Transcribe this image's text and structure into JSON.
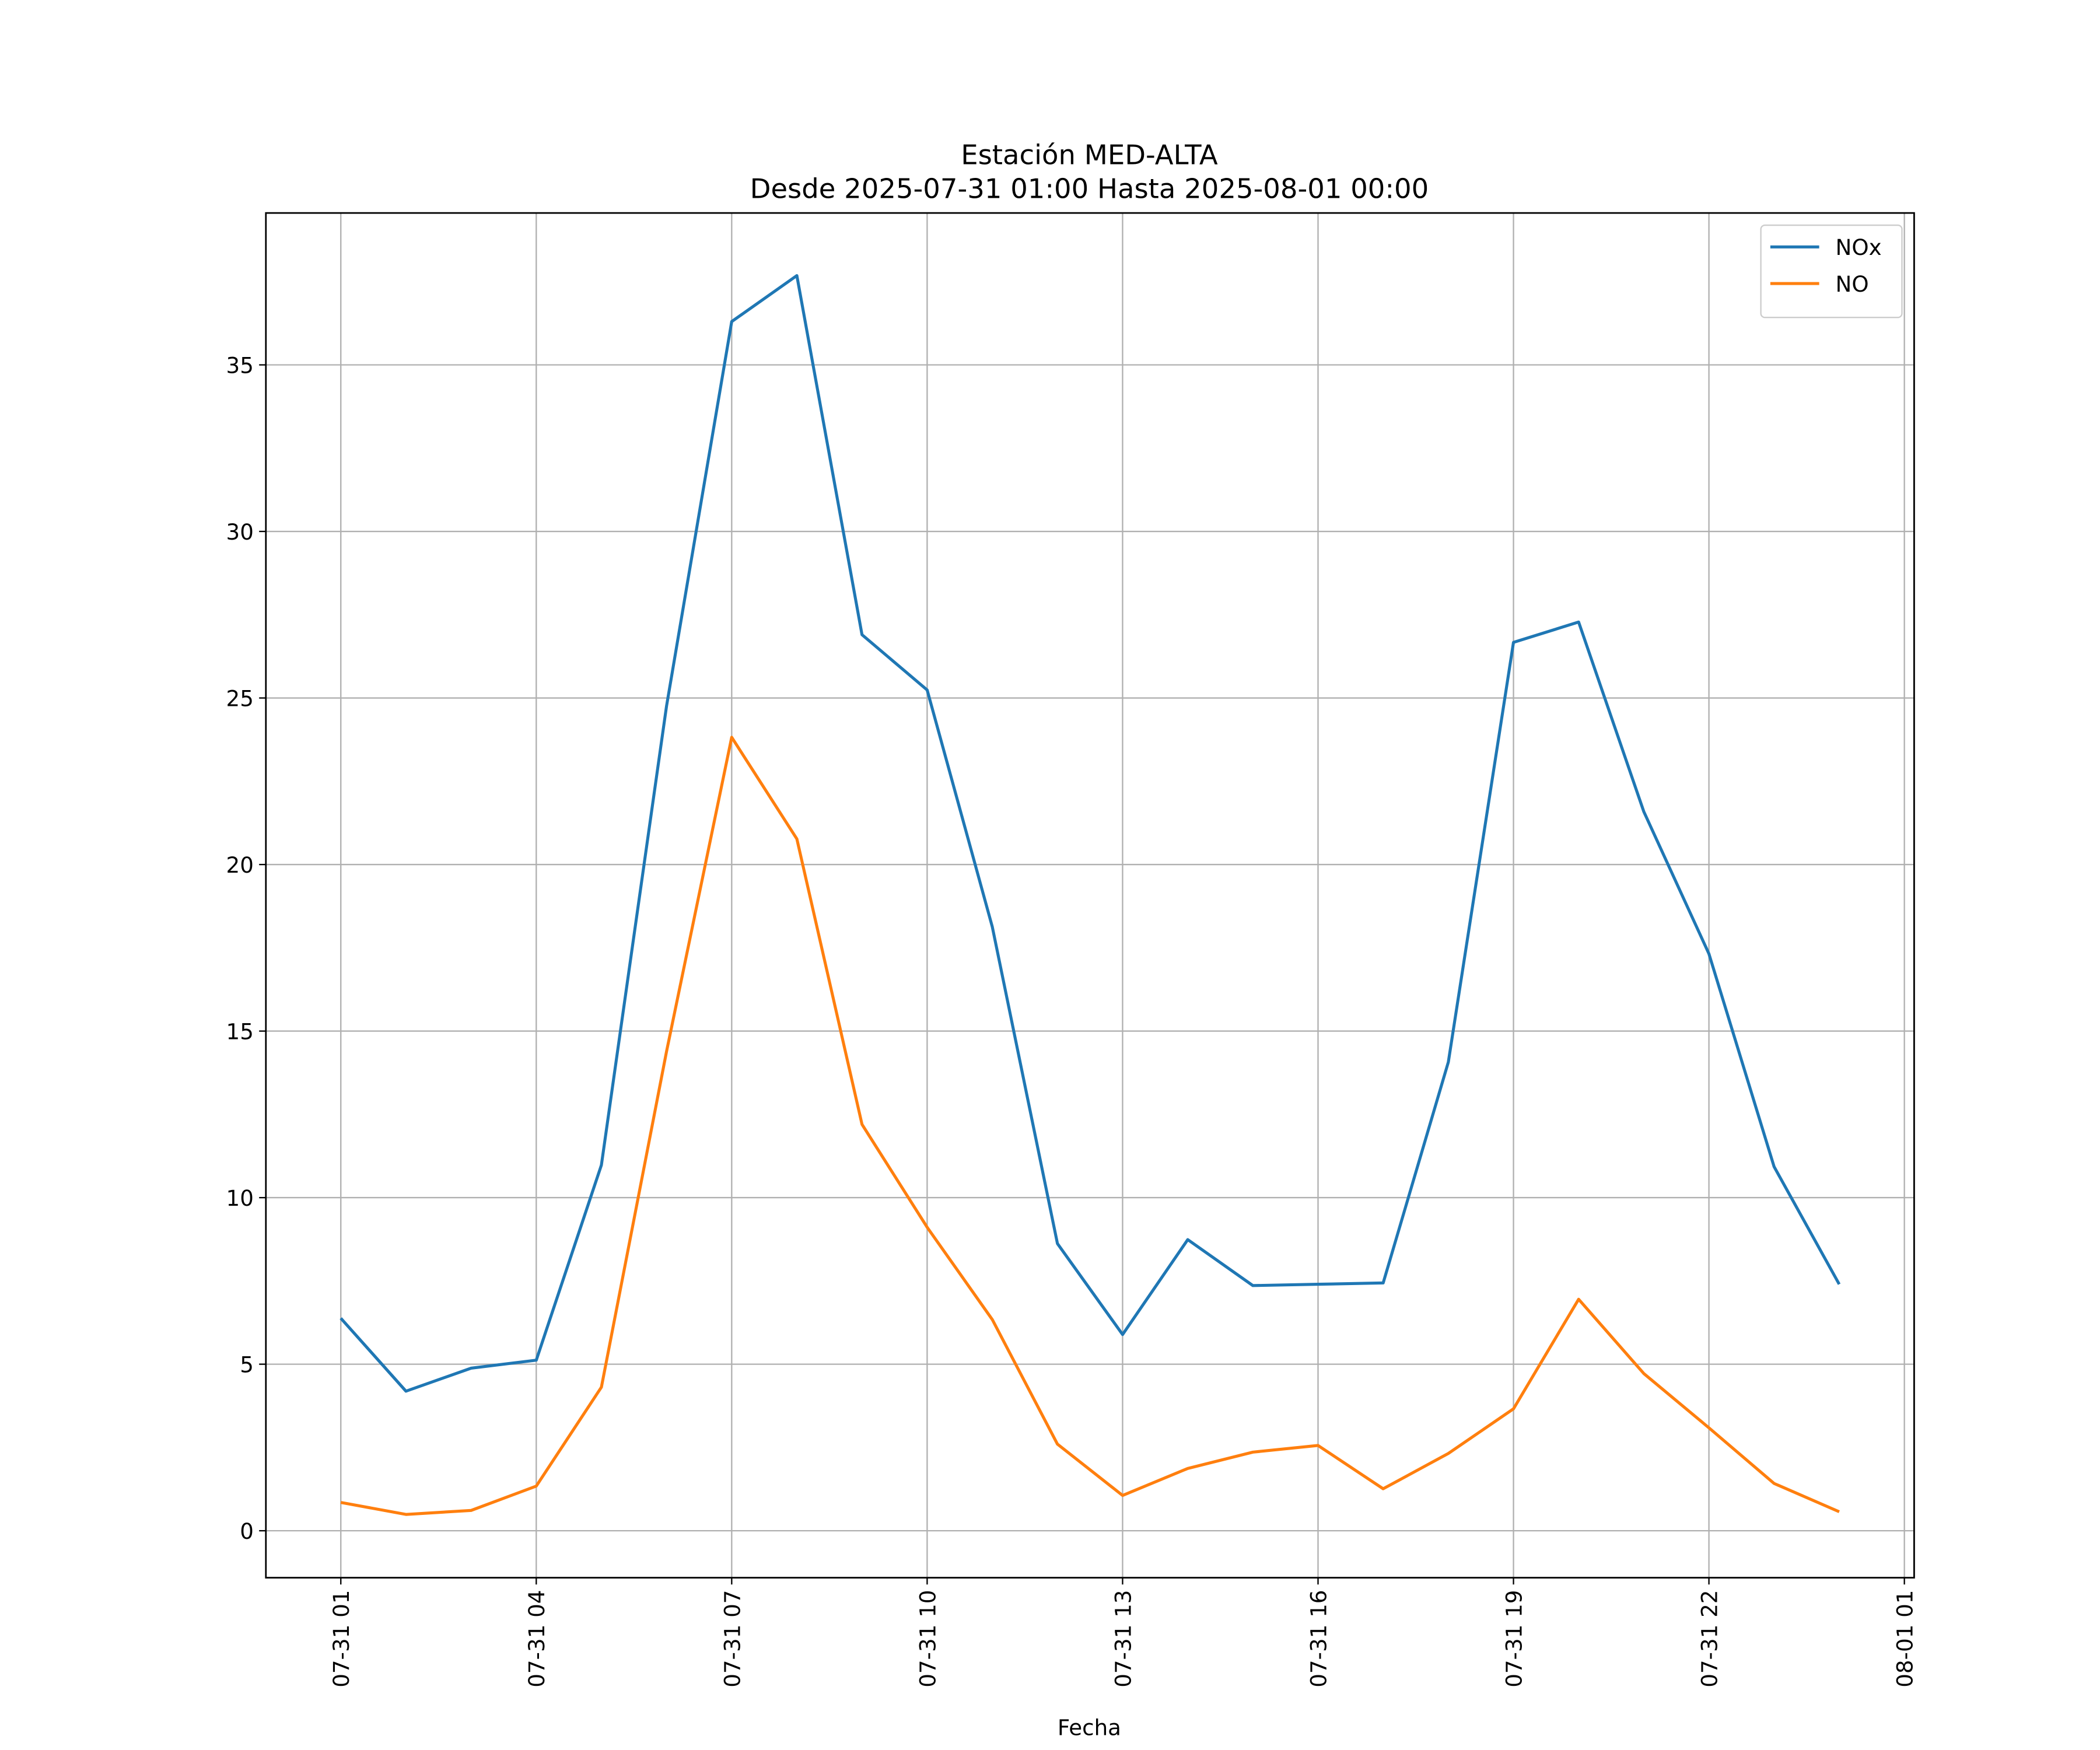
{
  "chart_data": {
    "type": "line",
    "title": "Estación MED-ALTA",
    "subtitle": "Desde 2025-07-31 01:00 Hasta 2025-08-01 00:00",
    "xlabel": "Fecha",
    "x": [
      "07-31 01",
      "07-31 02",
      "07-31 03",
      "07-31 04",
      "07-31 05",
      "07-31 06",
      "07-31 07",
      "07-31 08",
      "07-31 09",
      "07-31 10",
      "07-31 11",
      "07-31 12",
      "07-31 13",
      "07-31 14",
      "07-31 15",
      "07-31 16",
      "07-31 17",
      "07-31 18",
      "07-31 19",
      "07-31 20",
      "07-31 21",
      "07-31 22",
      "07-31 23",
      "08-01 00"
    ],
    "series": [
      {
        "name": "NOx",
        "color": "#1f77b4",
        "values": [
          6.38,
          4.19,
          4.88,
          5.12,
          10.98,
          24.76,
          36.3,
          37.68,
          26.9,
          25.24,
          18.13,
          8.62,
          5.89,
          8.74,
          7.36,
          7.4,
          7.44,
          14.07,
          26.67,
          27.28,
          21.59,
          17.32,
          10.93,
          7.4
        ]
      },
      {
        "name": "NO",
        "color": "#ff7f0e",
        "values": [
          0.85,
          0.49,
          0.61,
          1.34,
          4.31,
          14.39,
          23.82,
          20.77,
          12.2,
          9.11,
          6.34,
          2.6,
          1.06,
          1.87,
          2.36,
          2.56,
          1.26,
          2.32,
          3.66,
          6.95,
          4.72,
          3.09,
          1.42,
          0.57
        ]
      }
    ],
    "xticks": [
      "07-31 01",
      "07-31 04",
      "07-31 07",
      "07-31 10",
      "07-31 13",
      "07-31 16",
      "07-31 19",
      "07-31 22",
      "08-01 01"
    ],
    "ylim": [
      -1.41,
      39.56
    ],
    "yticks": [
      0,
      5,
      10,
      15,
      20,
      25,
      30,
      35
    ],
    "grid": true,
    "legend": "upper right"
  }
}
